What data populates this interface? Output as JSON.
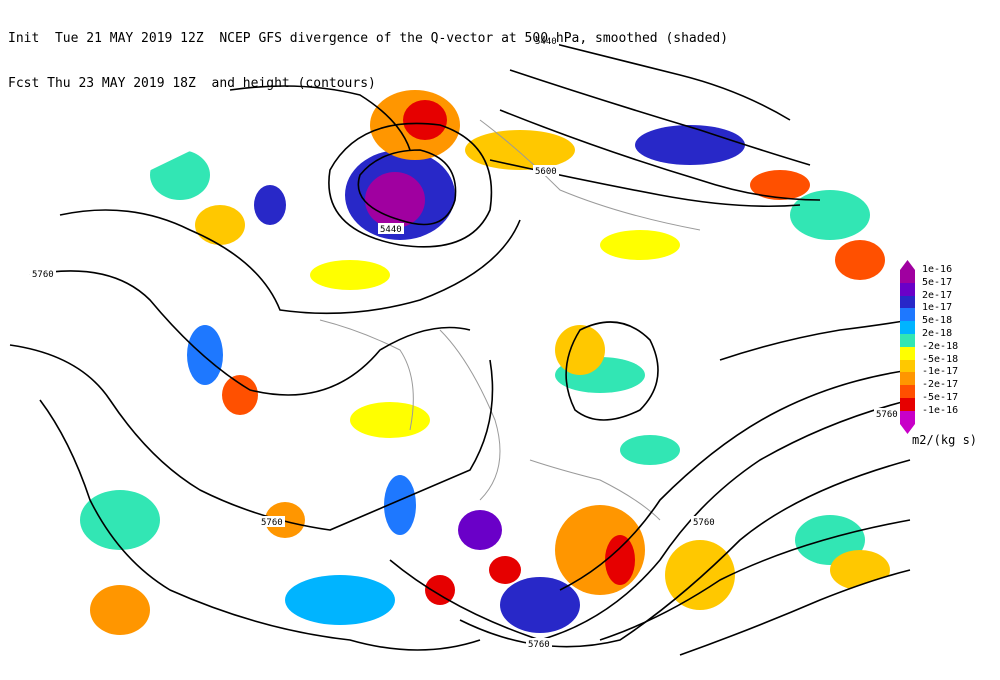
{
  "header": {
    "line1": "Init  Tue 21 MAY 2019 12Z  NCEP GFS divergence of the Q-vector at 500 hPa, smoothed (shaded)",
    "line2": "Fcst Thu 23 MAY 2019 18Z  and height (contours)"
  },
  "colorbar": {
    "units": "m2/(kg s)",
    "entries": [
      {
        "label": "1e-16",
        "color": "#a000a0"
      },
      {
        "label": "5e-17",
        "color": "#6a00c8"
      },
      {
        "label": "2e-17",
        "color": "#2828c8"
      },
      {
        "label": "1e-17",
        "color": "#1e78ff"
      },
      {
        "label": "5e-18",
        "color": "#00b4ff"
      },
      {
        "label": "2e-18",
        "color": "#32e6b4"
      },
      {
        "label": "-2e-18",
        "color": "#ffff00"
      },
      {
        "label": "-5e-18",
        "color": "#ffc800"
      },
      {
        "label": "-1e-17",
        "color": "#ff9600"
      },
      {
        "label": "-2e-17",
        "color": "#ff5000"
      },
      {
        "label": "-5e-17",
        "color": "#e60000"
      },
      {
        "label": "-1e-16",
        "color": "#c800c8"
      }
    ]
  },
  "contour_labels": [
    "5440",
    "5440",
    "5600",
    "5760",
    "5760",
    "5760",
    "5760",
    "5760"
  ]
}
